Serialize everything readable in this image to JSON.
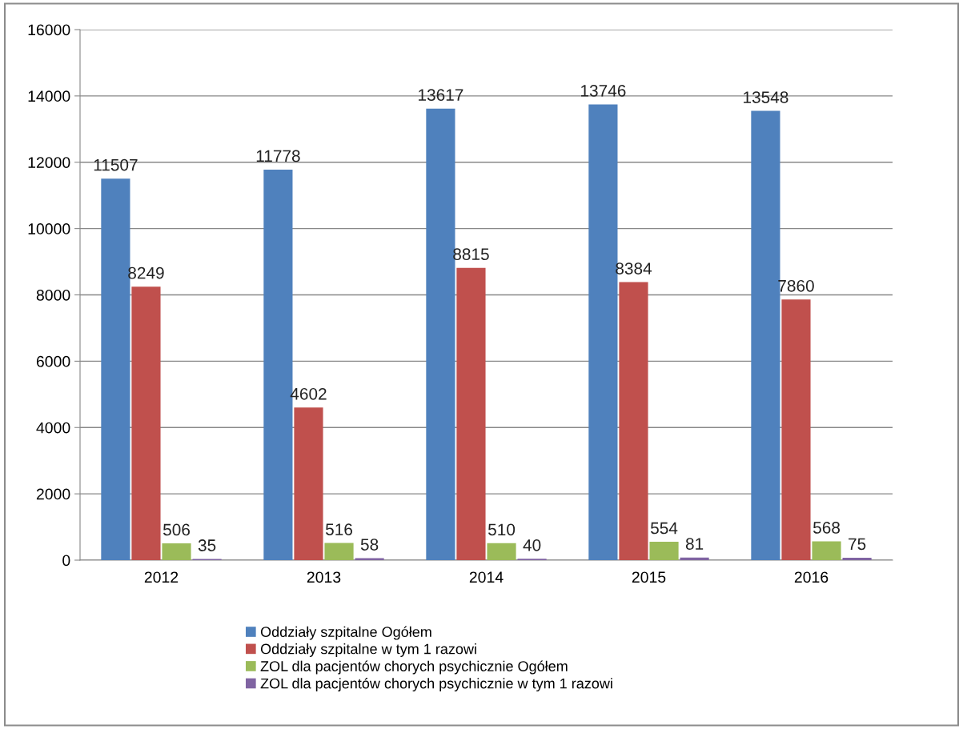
{
  "chart_data": {
    "type": "bar",
    "categories": [
      "2012",
      "2013",
      "2014",
      "2015",
      "2016"
    ],
    "series": [
      {
        "name": "Oddziały szpitalne Ogółem",
        "color": "#4f81bd",
        "values": [
          11507,
          11778,
          13617,
          13746,
          13548
        ]
      },
      {
        "name": "Oddziały szpitalne w tym 1 razowi",
        "color": "#c0504d",
        "values": [
          8249,
          4602,
          8815,
          8384,
          7860
        ]
      },
      {
        "name": "ZOL dla pacjentów chorych psychicznie Ogółem",
        "color": "#9bbb59",
        "values": [
          506,
          516,
          510,
          554,
          568
        ]
      },
      {
        "name": "ZOL dla pacjentów chorych psychicznie w tym 1 razowi",
        "color": "#8064a2",
        "values": [
          35,
          58,
          40,
          81,
          75
        ]
      }
    ],
    "ylim": [
      0,
      16000
    ],
    "yticks": [
      0,
      2000,
      4000,
      6000,
      8000,
      10000,
      12000,
      14000,
      16000
    ],
    "grid": "y",
    "legend": "bottom",
    "data_labels": true
  }
}
